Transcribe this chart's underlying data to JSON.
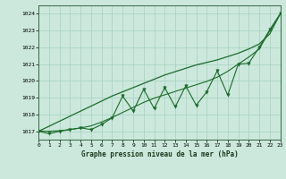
{
  "background_color": "#cce8dc",
  "plot_bg_color": "#cce8dc",
  "grid_color": "#aad4c4",
  "line_color": "#1a6b2a",
  "title": "Graphe pression niveau de la mer (hPa)",
  "xlim": [
    0,
    23
  ],
  "ylim": [
    1016.5,
    1024.5
  ],
  "yticks": [
    1017,
    1018,
    1019,
    1020,
    1021,
    1022,
    1023,
    1024
  ],
  "xticks": [
    0,
    1,
    2,
    3,
    4,
    5,
    6,
    7,
    8,
    9,
    10,
    11,
    12,
    13,
    14,
    15,
    16,
    17,
    18,
    19,
    20,
    21,
    22,
    23
  ],
  "hours": [
    0,
    1,
    2,
    3,
    4,
    5,
    6,
    7,
    8,
    9,
    10,
    11,
    12,
    13,
    14,
    15,
    16,
    17,
    18,
    19,
    20,
    21,
    22,
    23
  ],
  "pressure_zigzag": [
    1017.0,
    1016.85,
    1017.0,
    1017.1,
    1017.2,
    1017.1,
    1017.4,
    1017.8,
    1019.1,
    1018.2,
    1019.5,
    1018.35,
    1019.6,
    1018.45,
    1019.7,
    1018.55,
    1019.35,
    1020.6,
    1019.15,
    1021.0,
    1021.05,
    1022.0,
    1023.05,
    1024.0
  ],
  "pressure_smooth1": [
    1017.0,
    1017.0,
    1017.03,
    1017.1,
    1017.2,
    1017.32,
    1017.55,
    1017.82,
    1018.12,
    1018.42,
    1018.72,
    1018.97,
    1019.17,
    1019.37,
    1019.57,
    1019.77,
    1019.97,
    1020.22,
    1020.57,
    1021.0,
    1021.42,
    1021.9,
    1023.0,
    1024.0
  ],
  "pressure_linear": [
    1017.0,
    1017.3,
    1017.6,
    1017.9,
    1018.2,
    1018.5,
    1018.8,
    1019.1,
    1019.35,
    1019.6,
    1019.85,
    1020.1,
    1020.35,
    1020.55,
    1020.75,
    1020.95,
    1021.1,
    1021.25,
    1021.45,
    1021.65,
    1021.9,
    1022.2,
    1022.8,
    1024.0
  ]
}
